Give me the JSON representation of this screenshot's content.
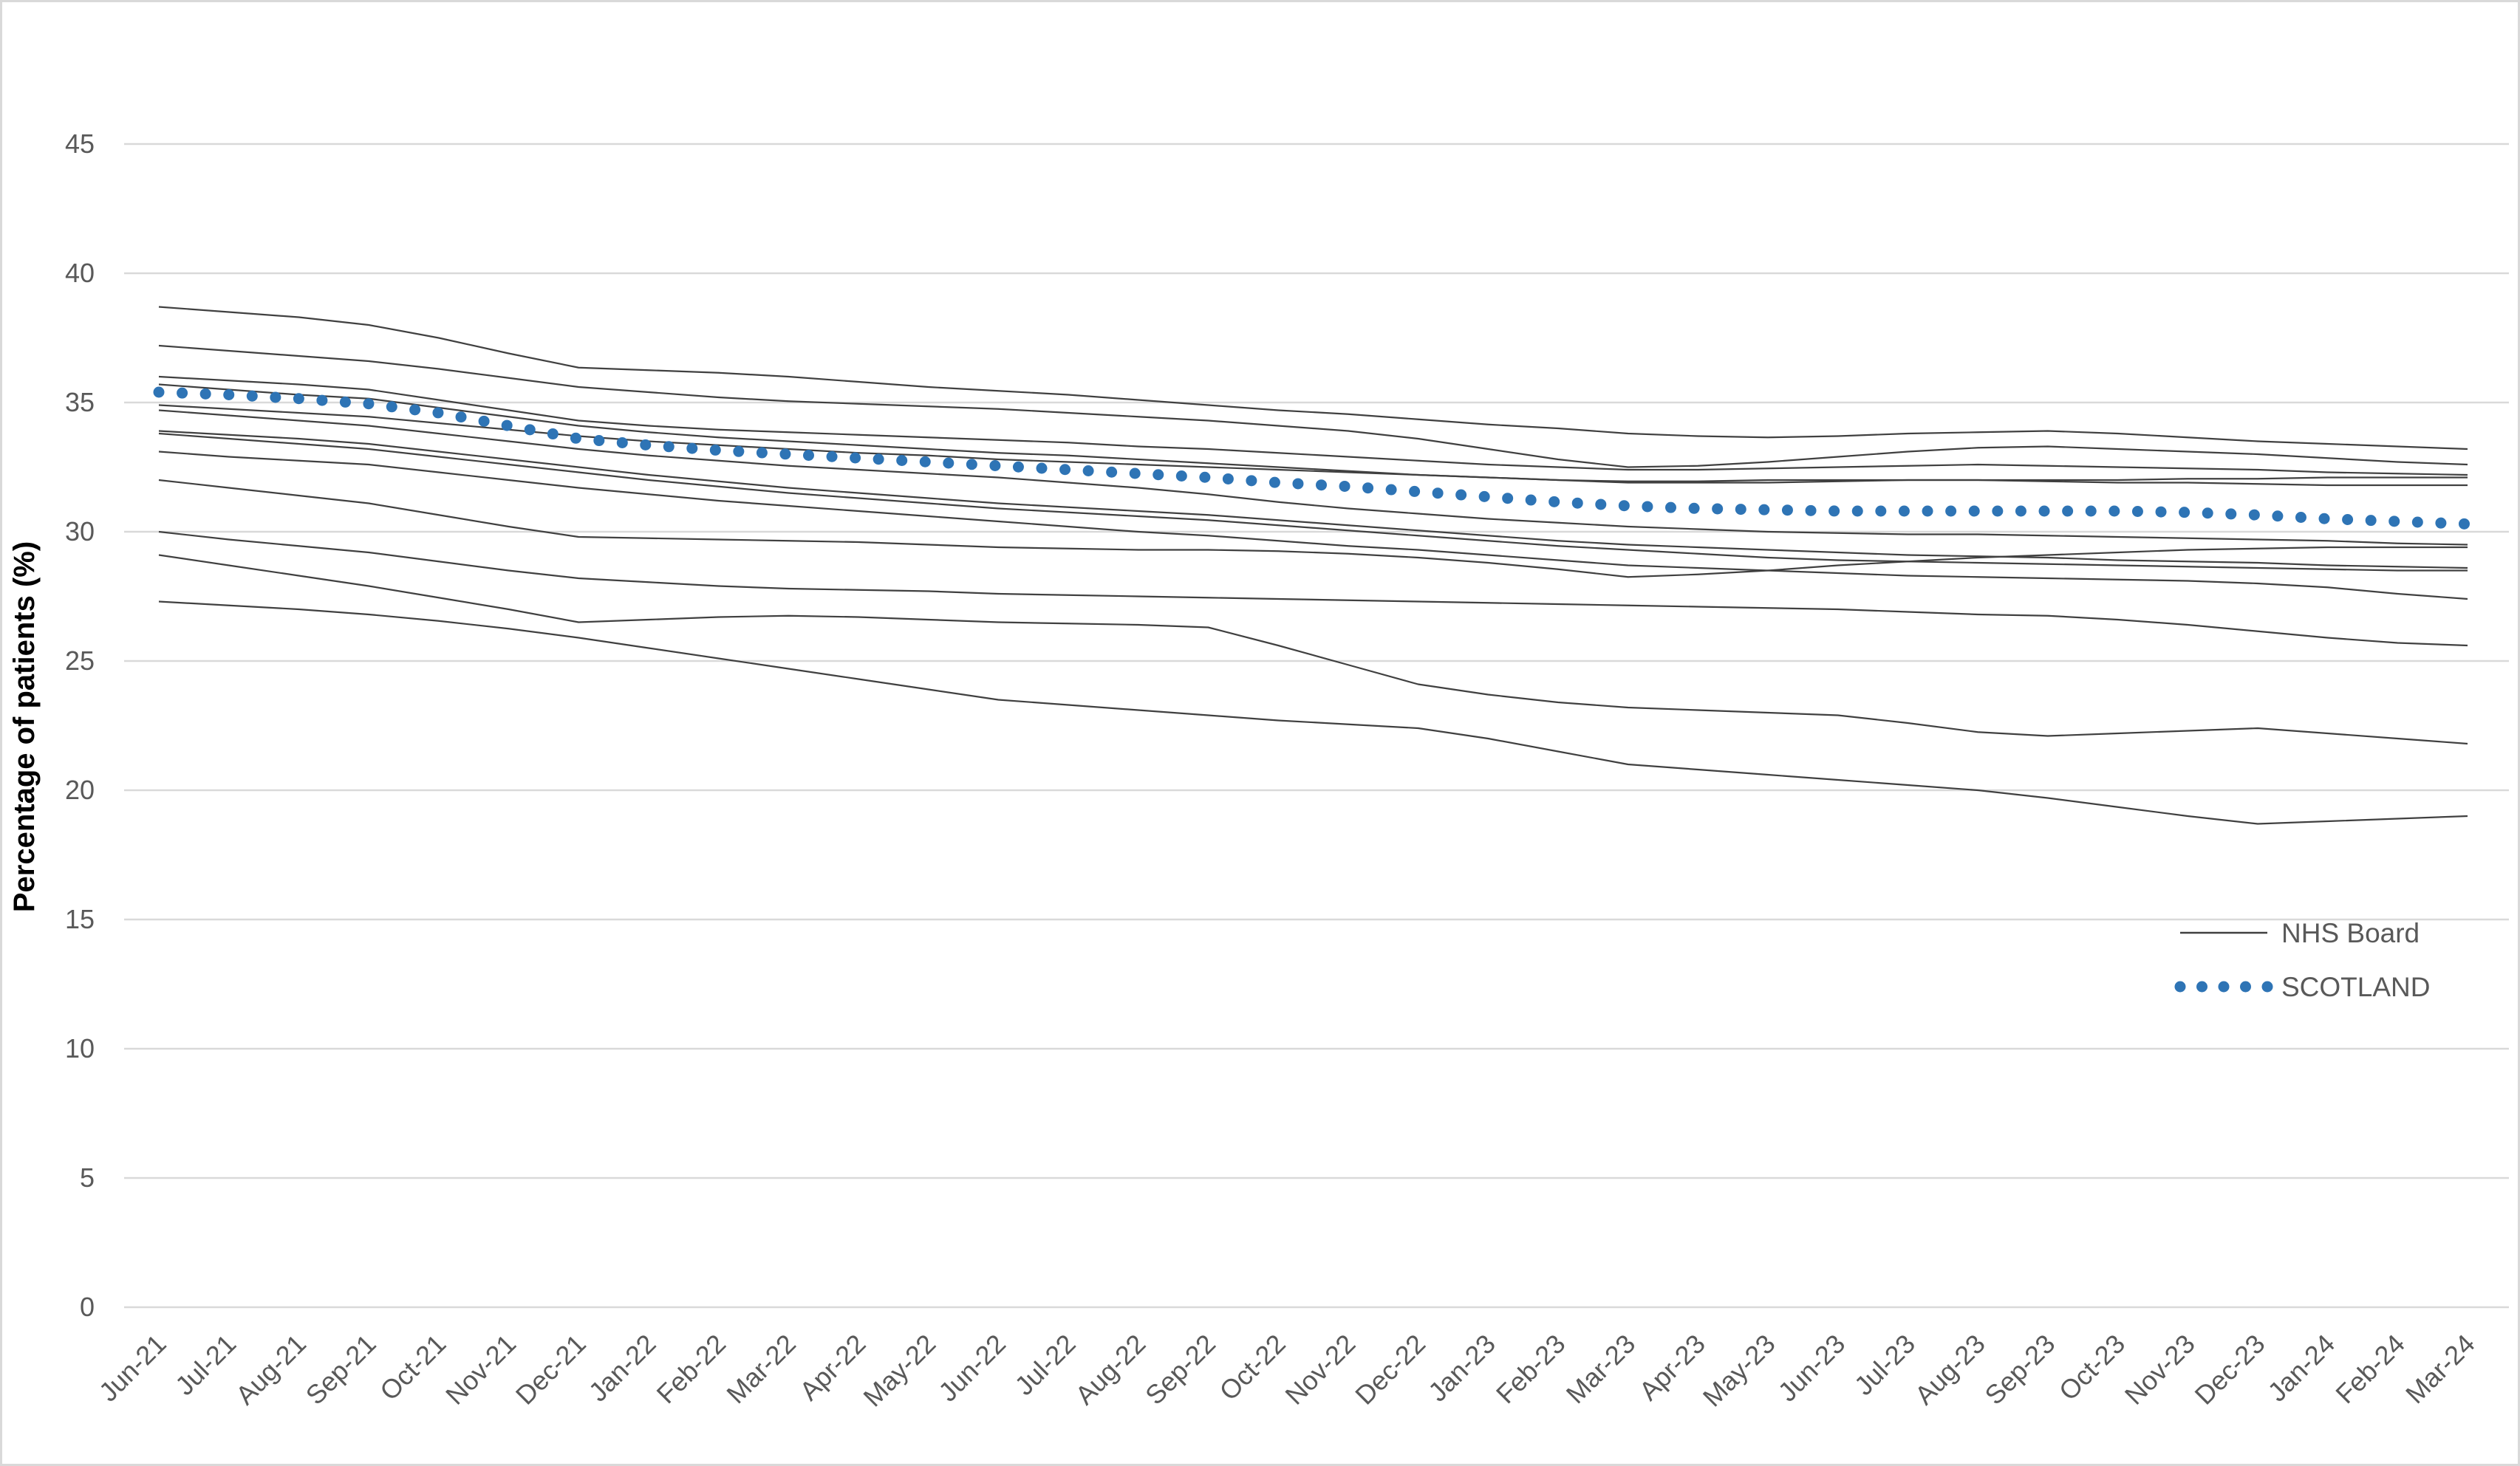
{
  "figure": {
    "background": "#FFFFFF",
    "border_color": "#D9D9D9"
  },
  "colors": {
    "board_line": "#404040",
    "scotland_blue": "#2E74B5",
    "gridline": "#D9D9D9",
    "tick_text": "#595959",
    "axis_title_text": "#000000"
  },
  "legend": {
    "items": [
      {
        "label": "NHS Board",
        "swatch": "line",
        "color": "#404040"
      },
      {
        "label": "SCOTLAND",
        "swatch": "dots",
        "color": "#2E74B5"
      }
    ],
    "position": "right-middle"
  },
  "chart_data": {
    "type": "line",
    "title": "",
    "xlabel": "",
    "ylabel": "Percentage of patients (%)",
    "ylim": [
      0,
      45
    ],
    "yticks": [
      0,
      5,
      10,
      15,
      20,
      25,
      30,
      35,
      40,
      45
    ],
    "grid": "horizontal",
    "legend_position": "right-middle",
    "categories": [
      "Jun-21",
      "Jul-21",
      "Aug-21",
      "Sep-21",
      "Oct-21",
      "Nov-21",
      "Dec-21",
      "Jan-22",
      "Feb-22",
      "Mar-22",
      "Apr-22",
      "May-22",
      "Jun-22",
      "Jul-22",
      "Aug-22",
      "Sep-22",
      "Oct-22",
      "Nov-22",
      "Dec-22",
      "Jan-23",
      "Feb-23",
      "Mar-23",
      "Apr-23",
      "May-23",
      "Jun-23",
      "Jul-23",
      "Aug-23",
      "Sep-23",
      "Oct-23",
      "Nov-23",
      "Dec-23",
      "Jan-24",
      "Feb-24",
      "Mar-24"
    ],
    "series": [
      {
        "id": "board-1",
        "name": "NHS Board",
        "style": "solid",
        "values": [
          38.7,
          38.5,
          38.3,
          38.0,
          37.5,
          36.9,
          36.35,
          36.25,
          36.15,
          36.0,
          35.8,
          35.6,
          35.45,
          35.3,
          35.1,
          34.9,
          34.7,
          34.55,
          34.35,
          34.15,
          34.0,
          33.8,
          33.7,
          33.65,
          33.7,
          33.8,
          33.85,
          33.9,
          33.8,
          33.65,
          33.5,
          33.4,
          33.3,
          33.2
        ]
      },
      {
        "id": "board-2",
        "name": "NHS Board",
        "style": "solid",
        "values": [
          37.2,
          37.0,
          36.8,
          36.6,
          36.3,
          35.95,
          35.6,
          35.4,
          35.2,
          35.05,
          34.95,
          34.85,
          34.75,
          34.6,
          34.45,
          34.3,
          34.1,
          33.9,
          33.6,
          33.2,
          32.8,
          32.5,
          32.55,
          32.7,
          32.9,
          33.1,
          33.25,
          33.3,
          33.2,
          33.1,
          33.0,
          32.85,
          32.7,
          32.6
        ]
      },
      {
        "id": "board-3",
        "name": "NHS Board",
        "style": "solid",
        "values": [
          36.0,
          35.85,
          35.7,
          35.5,
          35.1,
          34.7,
          34.3,
          34.1,
          33.95,
          33.85,
          33.75,
          33.65,
          33.55,
          33.45,
          33.3,
          33.2,
          33.05,
          32.9,
          32.75,
          32.6,
          32.5,
          32.4,
          32.4,
          32.45,
          32.5,
          32.55,
          32.6,
          32.55,
          32.5,
          32.45,
          32.4,
          32.3,
          32.25,
          32.2
        ]
      },
      {
        "id": "board-4",
        "name": "NHS Board",
        "style": "solid",
        "values": [
          35.7,
          35.5,
          35.3,
          35.15,
          34.8,
          34.45,
          34.1,
          33.85,
          33.65,
          33.5,
          33.35,
          33.2,
          33.05,
          32.95,
          32.8,
          32.65,
          32.5,
          32.35,
          32.2,
          32.1,
          32.0,
          31.95,
          31.95,
          32.0,
          32.0,
          32.0,
          32.0,
          31.95,
          31.9,
          31.9,
          31.85,
          31.8,
          31.8,
          31.8
        ]
      },
      {
        "id": "board-5",
        "name": "NHS Board",
        "style": "solid",
        "values": [
          34.9,
          34.75,
          34.6,
          34.45,
          34.2,
          33.95,
          33.7,
          33.5,
          33.35,
          33.2,
          33.05,
          32.95,
          32.8,
          32.7,
          32.6,
          32.5,
          32.4,
          32.3,
          32.2,
          32.1,
          32.0,
          31.9,
          31.9,
          31.9,
          31.95,
          32.0,
          32.0,
          32.0,
          32.0,
          32.05,
          32.05,
          32.1,
          32.1,
          32.1
        ]
      },
      {
        "id": "board-6",
        "name": "NHS Board",
        "style": "solid",
        "values": [
          34.7,
          34.5,
          34.3,
          34.1,
          33.8,
          33.5,
          33.2,
          32.95,
          32.75,
          32.55,
          32.4,
          32.25,
          32.1,
          31.9,
          31.7,
          31.45,
          31.15,
          30.9,
          30.7,
          30.5,
          30.35,
          30.2,
          30.1,
          30.0,
          29.95,
          29.9,
          29.9,
          29.85,
          29.8,
          29.75,
          29.7,
          29.65,
          29.55,
          29.5
        ]
      },
      {
        "id": "board-7",
        "name": "NHS Board",
        "style": "solid",
        "values": [
          33.9,
          33.75,
          33.6,
          33.4,
          33.1,
          32.8,
          32.5,
          32.2,
          31.95,
          31.7,
          31.5,
          31.3,
          31.1,
          30.95,
          30.8,
          30.65,
          30.45,
          30.25,
          30.05,
          29.85,
          29.65,
          29.5,
          29.4,
          29.3,
          29.2,
          29.1,
          29.05,
          29.0,
          28.9,
          28.85,
          28.8,
          28.7,
          28.65,
          28.6
        ]
      },
      {
        "id": "board-8",
        "name": "NHS Board",
        "style": "solid",
        "values": [
          33.8,
          33.6,
          33.4,
          33.2,
          32.9,
          32.6,
          32.3,
          32.0,
          31.75,
          31.5,
          31.3,
          31.1,
          30.9,
          30.75,
          30.6,
          30.45,
          30.25,
          30.05,
          29.85,
          29.65,
          29.45,
          29.3,
          29.15,
          29.0,
          28.9,
          28.85,
          28.8,
          28.75,
          28.7,
          28.65,
          28.6,
          28.55,
          28.5,
          28.5
        ]
      },
      {
        "id": "board-9",
        "name": "NHS Board",
        "style": "solid",
        "values": [
          33.1,
          32.9,
          32.75,
          32.6,
          32.3,
          32.0,
          31.7,
          31.45,
          31.2,
          31.0,
          30.8,
          30.6,
          30.4,
          30.2,
          30.0,
          29.85,
          29.65,
          29.45,
          29.3,
          29.1,
          28.9,
          28.7,
          28.6,
          28.5,
          28.4,
          28.3,
          28.25,
          28.2,
          28.15,
          28.1,
          28.0,
          27.85,
          27.6,
          27.4
        ]
      },
      {
        "id": "board-10",
        "name": "NHS Board",
        "style": "solid",
        "values": [
          32.0,
          31.7,
          31.4,
          31.1,
          30.65,
          30.2,
          29.8,
          29.75,
          29.7,
          29.65,
          29.6,
          29.5,
          29.4,
          29.35,
          29.3,
          29.3,
          29.25,
          29.15,
          29.0,
          28.8,
          28.55,
          28.25,
          28.35,
          28.5,
          28.7,
          28.85,
          29.0,
          29.1,
          29.2,
          29.3,
          29.35,
          29.4,
          29.4,
          29.4
        ]
      },
      {
        "id": "board-11",
        "name": "NHS Board",
        "style": "solid",
        "values": [
          30.0,
          29.7,
          29.45,
          29.2,
          28.85,
          28.5,
          28.2,
          28.05,
          27.9,
          27.8,
          27.75,
          27.7,
          27.6,
          27.55,
          27.5,
          27.45,
          27.4,
          27.35,
          27.3,
          27.25,
          27.2,
          27.15,
          27.1,
          27.05,
          27.0,
          26.9,
          26.8,
          26.75,
          26.6,
          26.4,
          26.15,
          25.9,
          25.7,
          25.6
        ]
      },
      {
        "id": "board-12",
        "name": "NHS Board",
        "style": "solid",
        "values": [
          29.1,
          28.7,
          28.3,
          27.9,
          27.45,
          27.0,
          26.5,
          26.6,
          26.7,
          26.75,
          26.7,
          26.6,
          26.5,
          26.45,
          26.4,
          26.3,
          25.6,
          24.85,
          24.1,
          23.7,
          23.4,
          23.2,
          23.1,
          23.0,
          22.9,
          22.6,
          22.25,
          22.1,
          22.2,
          22.3,
          22.4,
          22.2,
          22.0,
          21.8
        ]
      },
      {
        "id": "board-13",
        "name": "NHS Board",
        "style": "solid",
        "values": [
          27.3,
          27.15,
          27.0,
          26.8,
          26.55,
          26.25,
          25.9,
          25.5,
          25.1,
          24.7,
          24.3,
          23.9,
          23.5,
          23.3,
          23.1,
          22.9,
          22.7,
          22.55,
          22.4,
          22.0,
          21.5,
          21.0,
          20.8,
          20.6,
          20.4,
          20.2,
          20.0,
          19.7,
          19.35,
          19.0,
          18.7,
          18.8,
          18.9,
          19.0
        ]
      },
      {
        "id": "scotland",
        "name": "SCOTLAND",
        "style": "dotted",
        "values": [
          35.4,
          35.3,
          35.15,
          34.95,
          34.6,
          34.1,
          33.6,
          33.35,
          33.15,
          33.0,
          32.85,
          32.7,
          32.55,
          32.4,
          32.25,
          32.1,
          31.9,
          31.75,
          31.55,
          31.35,
          31.15,
          31.0,
          30.9,
          30.85,
          30.8,
          30.8,
          30.8,
          30.8,
          30.8,
          30.75,
          30.65,
          30.5,
          30.4,
          30.3
        ]
      }
    ]
  }
}
